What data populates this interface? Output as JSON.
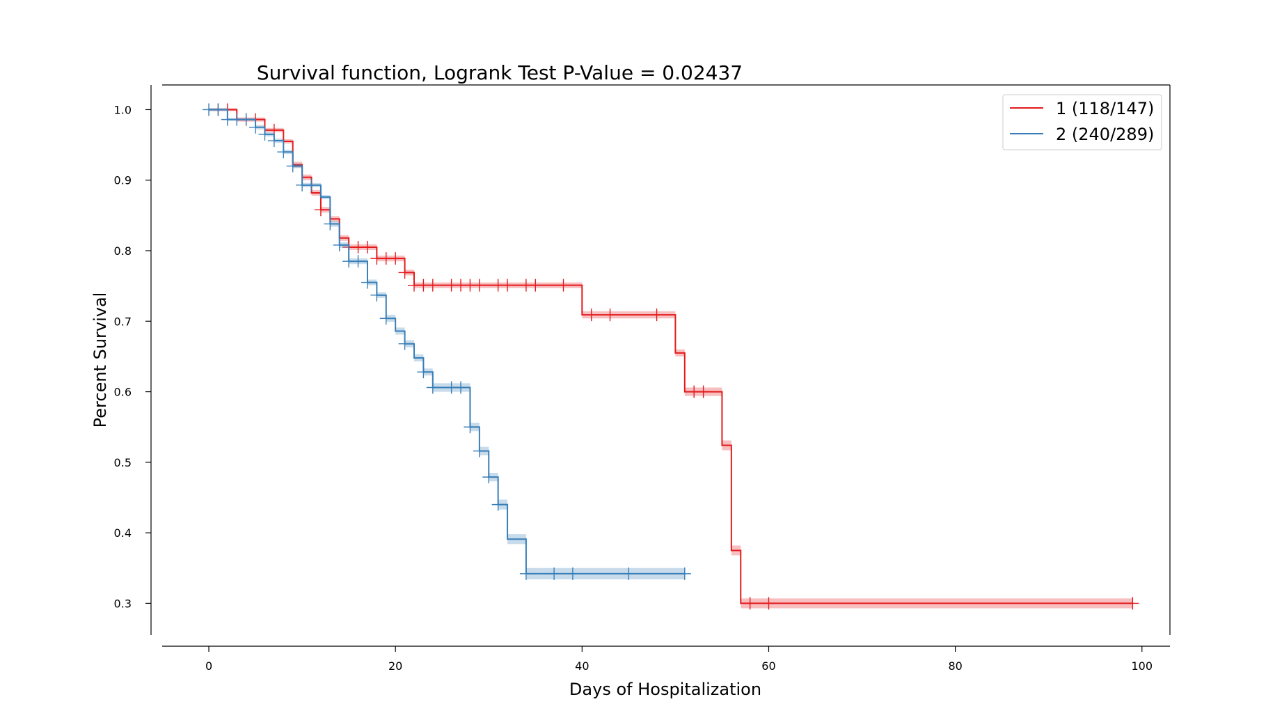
{
  "chart_data": {
    "type": "line",
    "title": "Survival function, Logrank Test P-Value = 0.02437",
    "xlabel": "Days of Hospitalization",
    "ylabel": "Percent Survival",
    "xlim": [
      -5,
      103
    ],
    "ylim": [
      0.255,
      1.035
    ],
    "xticks": [
      0,
      20,
      40,
      60,
      80,
      100
    ],
    "yticks": [
      0.3,
      0.4,
      0.5,
      0.6,
      0.7,
      0.8,
      0.9,
      1.0
    ],
    "ytick_labels": [
      "0.3",
      "0.4",
      "0.5",
      "0.6",
      "0.7",
      "0.8",
      "0.9",
      "1.0"
    ],
    "grid": false,
    "legend_position": "top-right",
    "series": [
      {
        "name": "1 (118/147)",
        "color": "#e41a1c",
        "steps": [
          [
            0,
            1.0
          ],
          [
            3,
            0.986
          ],
          [
            6,
            0.971
          ],
          [
            8,
            0.955
          ],
          [
            9,
            0.922
          ],
          [
            10,
            0.904
          ],
          [
            11,
            0.882
          ],
          [
            12,
            0.858
          ],
          [
            13,
            0.845
          ],
          [
            14,
            0.818
          ],
          [
            15,
            0.805
          ],
          [
            18,
            0.789
          ],
          [
            21,
            0.769
          ],
          [
            22,
            0.751
          ],
          [
            40,
            0.709
          ],
          [
            50,
            0.655
          ],
          [
            51,
            0.6
          ],
          [
            55,
            0.524
          ],
          [
            56,
            0.375
          ],
          [
            57,
            0.3
          ],
          [
            99,
            0.3
          ]
        ],
        "ci_halfwidth": [
          0.002,
          0.003,
          0.003,
          0.003,
          0.004,
          0.004,
          0.004,
          0.004,
          0.004,
          0.004,
          0.004,
          0.004,
          0.004,
          0.004,
          0.005,
          0.005,
          0.006,
          0.007,
          0.007,
          0.007,
          0.007
        ],
        "censor_times": [
          1,
          2,
          4,
          5,
          7,
          12,
          15,
          16,
          17,
          18,
          19,
          20,
          21,
          22,
          23,
          24,
          26,
          27,
          28,
          29,
          31,
          32,
          34,
          35,
          38,
          41,
          43,
          48,
          52,
          53,
          58,
          60,
          99
        ]
      },
      {
        "name": "2 (240/289)",
        "color": "#377eb8",
        "steps": [
          [
            0,
            1.0
          ],
          [
            2,
            0.986
          ],
          [
            5,
            0.975
          ],
          [
            6,
            0.965
          ],
          [
            7,
            0.956
          ],
          [
            8,
            0.94
          ],
          [
            9,
            0.92
          ],
          [
            10,
            0.893
          ],
          [
            12,
            0.876
          ],
          [
            13,
            0.838
          ],
          [
            14,
            0.808
          ],
          [
            15,
            0.785
          ],
          [
            17,
            0.755
          ],
          [
            18,
            0.737
          ],
          [
            19,
            0.704
          ],
          [
            20,
            0.686
          ],
          [
            21,
            0.668
          ],
          [
            22,
            0.648
          ],
          [
            23,
            0.628
          ],
          [
            24,
            0.606
          ],
          [
            28,
            0.55
          ],
          [
            29,
            0.516
          ],
          [
            30,
            0.479
          ],
          [
            31,
            0.44
          ],
          [
            32,
            0.391
          ],
          [
            34,
            0.342
          ],
          [
            51,
            0.342
          ]
        ],
        "ci_halfwidth": [
          0.002,
          0.002,
          0.003,
          0.003,
          0.003,
          0.003,
          0.003,
          0.003,
          0.003,
          0.004,
          0.004,
          0.004,
          0.004,
          0.004,
          0.005,
          0.005,
          0.005,
          0.005,
          0.005,
          0.006,
          0.006,
          0.006,
          0.006,
          0.007,
          0.007,
          0.008,
          0.008
        ],
        "censor_times": [
          0,
          1,
          2,
          3,
          4,
          5,
          6,
          7,
          8,
          9,
          10,
          11,
          13,
          14,
          15,
          16,
          17,
          18,
          19,
          21,
          23,
          24,
          26,
          27,
          28,
          29,
          30,
          31,
          34,
          37,
          39,
          45,
          51
        ]
      }
    ]
  }
}
